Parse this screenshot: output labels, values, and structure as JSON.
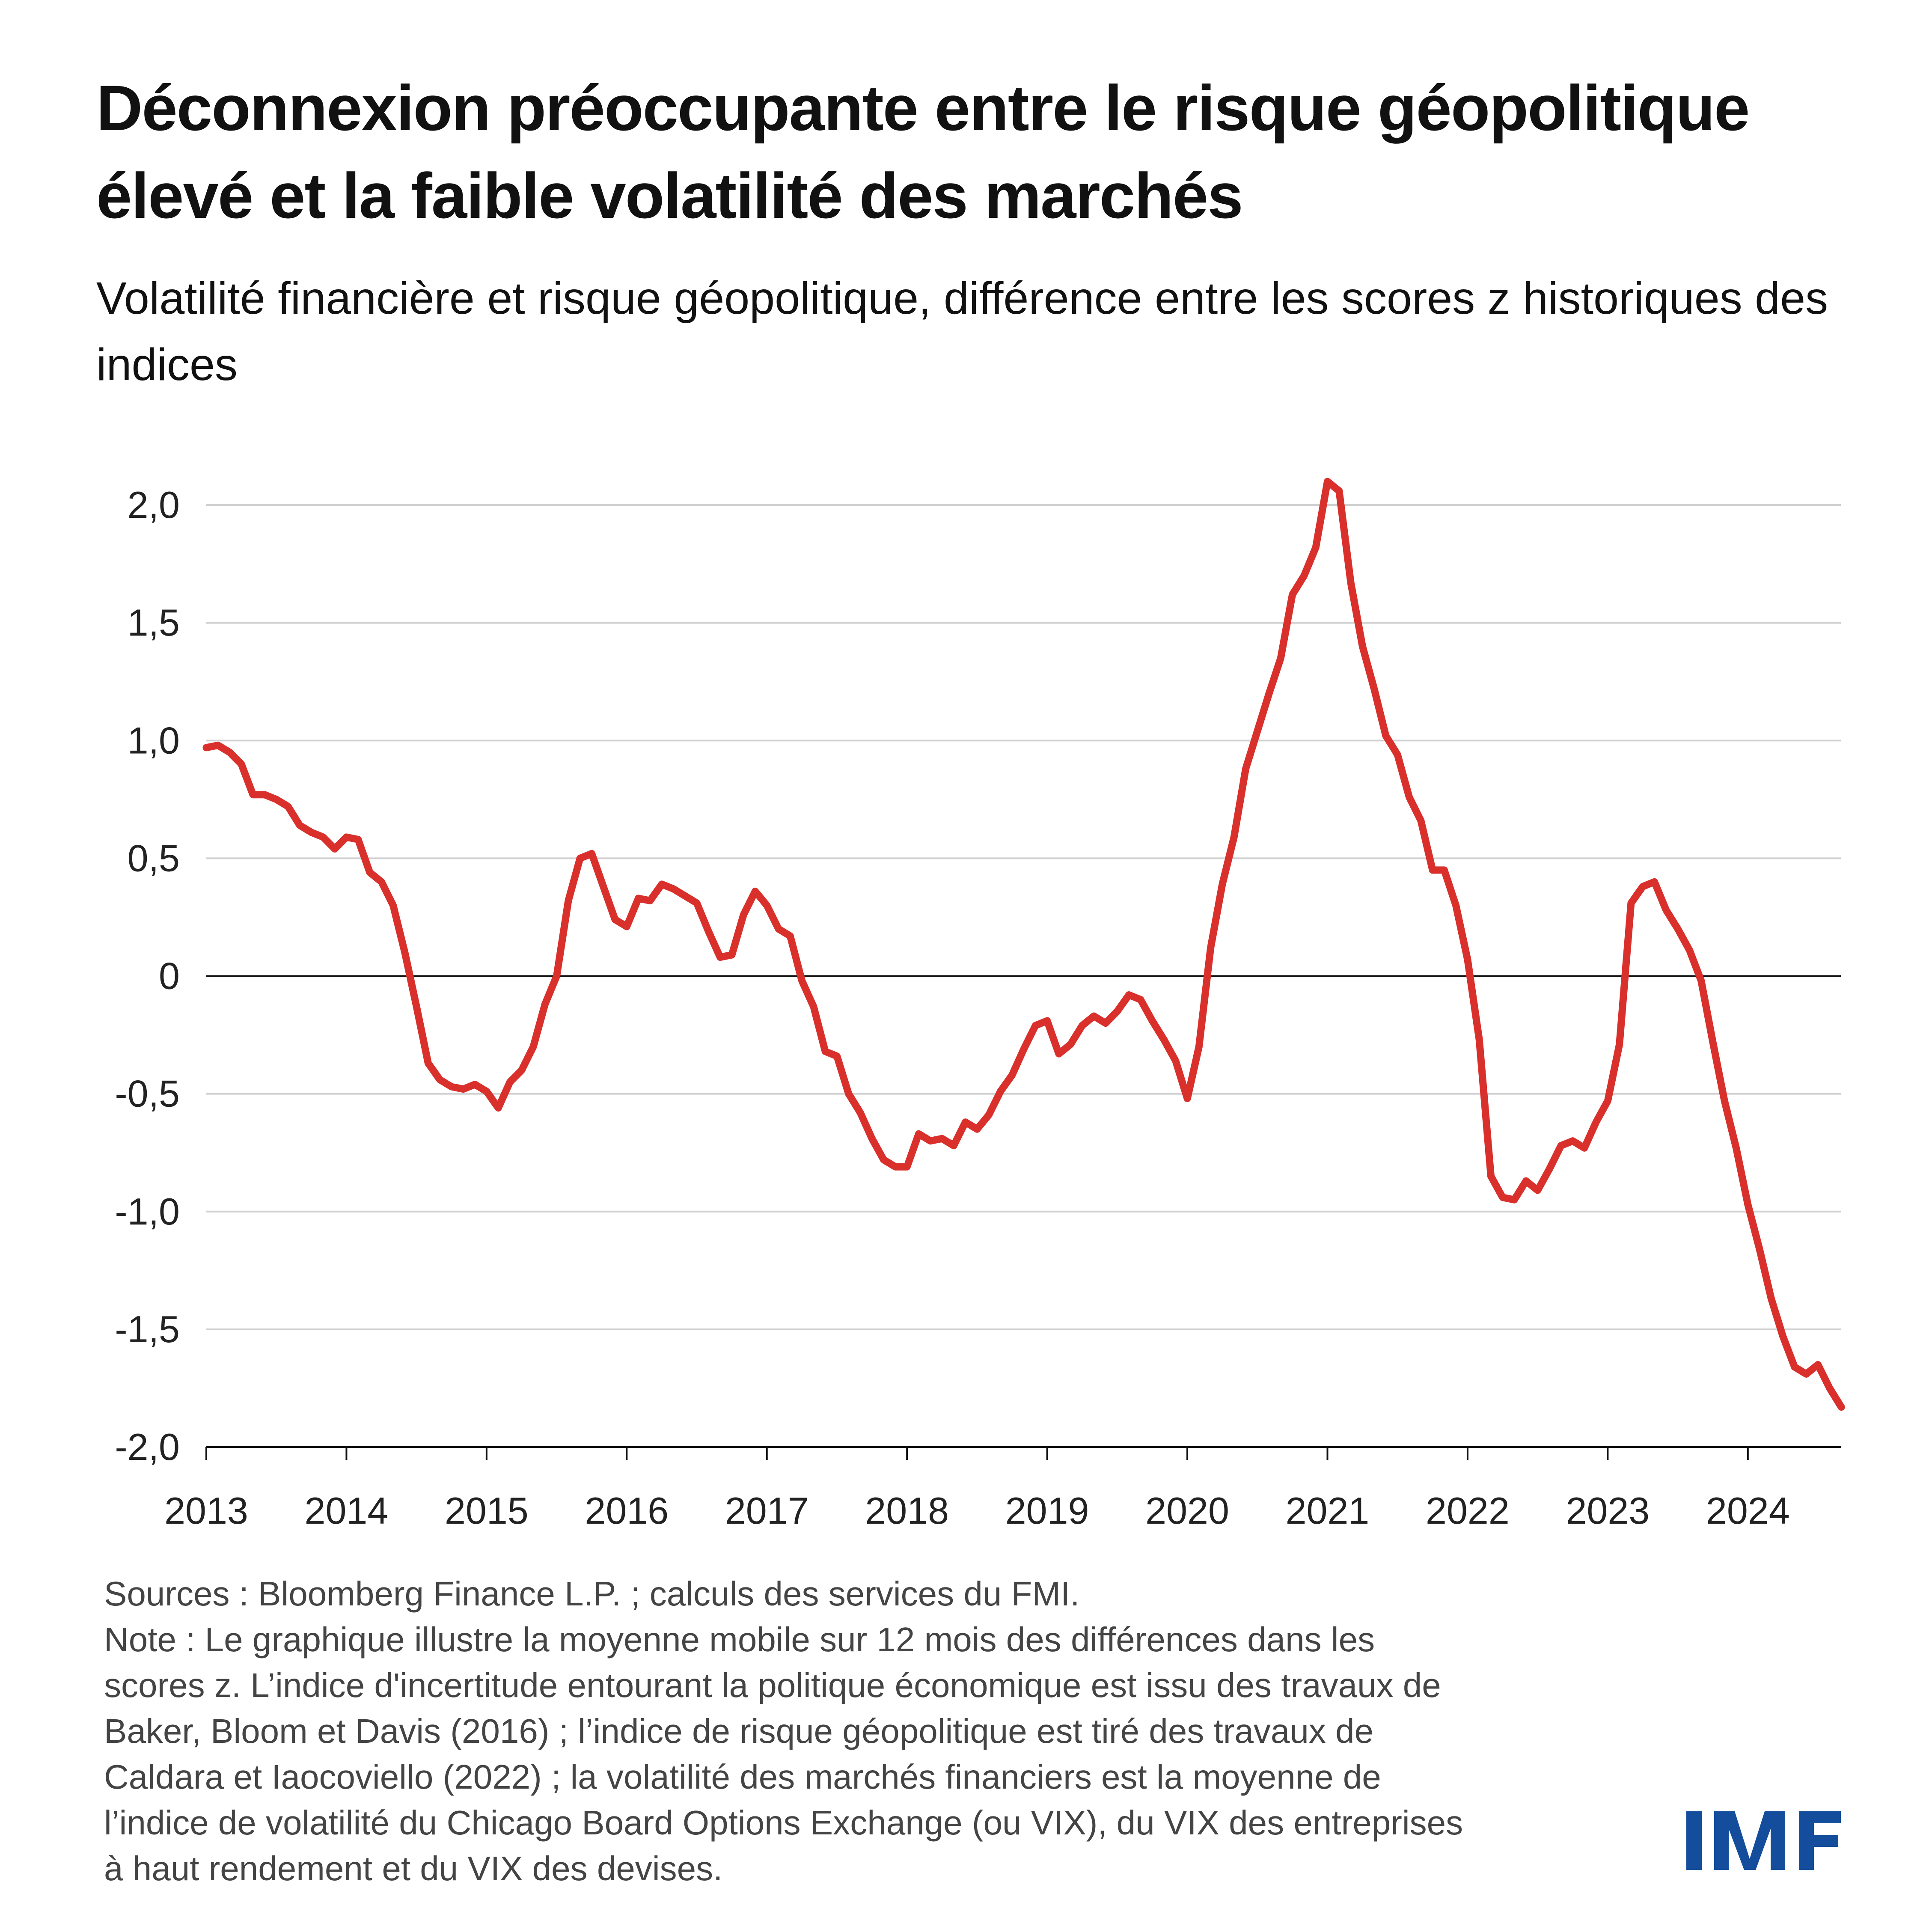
{
  "title": "Déconnexion préoccupante entre le risque géopolitique élevé et la faible volatilité des marchés",
  "subtitle": "Volatilité financière et risque géopolitique, différence entre les scores z historiques des indices",
  "notes": {
    "lines": [
      "Sources : Bloomberg Finance L.P. ; calculs des services du FMI.",
      "Note : Le graphique illustre la moyenne mobile sur 12 mois des différences dans les",
      "scores z. L’indice d'incertitude entourant la politique économique est issu des travaux de",
      "Baker, Bloom et Davis (2016) ; l’indice de risque géopolitique est tiré des travaux de",
      "Caldara et Iaocoviello (2022) ; la volatilité des marchés financiers est la moyenne de",
      "l’indice de volatilité du Chicago Board Options Exchange (ou VIX), du VIX des entreprises",
      "à haut rendement et du VIX des devises."
    ]
  },
  "logo": {
    "text": "IMF",
    "color": "#134d9b"
  },
  "chart_data": {
    "type": "line",
    "title": "",
    "xlabel": "",
    "ylabel": "",
    "ylim": [
      -2.0,
      2.0
    ],
    "xlim": [
      "2013-01",
      "2024-08"
    ],
    "yticks": [
      2.0,
      1.5,
      1.0,
      0.5,
      0,
      -0.5,
      -1.0,
      -1.5,
      -2.0
    ],
    "ytick_labels": [
      "2,0",
      "1,5",
      "1,0",
      "0,5",
      "0",
      "-0,5",
      "-1,0",
      "-1,5",
      "-2,0"
    ],
    "xtick_labels": [
      "2013",
      "2014",
      "2015",
      "2016",
      "2017",
      "2018",
      "2019",
      "2020",
      "2021",
      "2022",
      "2023",
      "2024"
    ],
    "grid": "horizontal",
    "zero_line": true,
    "line_color": "#d9302c",
    "frequency": "monthly",
    "start": "2013-01",
    "values": [
      0.97,
      0.98,
      0.95,
      0.9,
      0.77,
      0.77,
      0.75,
      0.72,
      0.64,
      0.61,
      0.59,
      0.54,
      0.59,
      0.58,
      0.44,
      0.4,
      0.3,
      0.1,
      -0.13,
      -0.37,
      -0.44,
      -0.47,
      -0.48,
      -0.46,
      -0.49,
      -0.56,
      -0.45,
      -0.4,
      -0.3,
      -0.12,
      0.0,
      0.32,
      0.5,
      0.52,
      0.38,
      0.24,
      0.21,
      0.33,
      0.32,
      0.39,
      0.37,
      0.34,
      0.31,
      0.19,
      0.08,
      0.09,
      0.26,
      0.36,
      0.3,
      0.2,
      0.17,
      -0.02,
      -0.13,
      -0.32,
      -0.34,
      -0.5,
      -0.58,
      -0.69,
      -0.78,
      -0.81,
      -0.81,
      -0.67,
      -0.7,
      -0.69,
      -0.72,
      -0.62,
      -0.65,
      -0.59,
      -0.49,
      -0.42,
      -0.31,
      -0.21,
      -0.19,
      -0.33,
      -0.29,
      -0.21,
      -0.17,
      -0.2,
      -0.15,
      -0.08,
      -0.1,
      -0.19,
      -0.27,
      -0.36,
      -0.52,
      -0.3,
      0.12,
      0.39,
      0.59,
      0.88,
      1.04,
      1.2,
      1.35,
      1.62,
      1.7,
      1.82,
      2.1,
      2.06,
      1.67,
      1.4,
      1.22,
      1.02,
      0.94,
      0.76,
      0.66,
      0.45,
      0.45,
      0.3,
      0.07,
      -0.27,
      -0.85,
      -0.94,
      -0.95,
      -0.87,
      -0.91,
      -0.82,
      -0.72,
      -0.7,
      -0.73,
      -0.62,
      -0.53,
      -0.29,
      0.31,
      0.38,
      0.4,
      0.28,
      0.2,
      0.11,
      -0.02,
      -0.28,
      -0.53,
      -0.73,
      -0.97,
      -1.16,
      -1.37,
      -1.53,
      -1.66,
      -1.69,
      -1.65,
      -1.75,
      -1.83
    ]
  }
}
